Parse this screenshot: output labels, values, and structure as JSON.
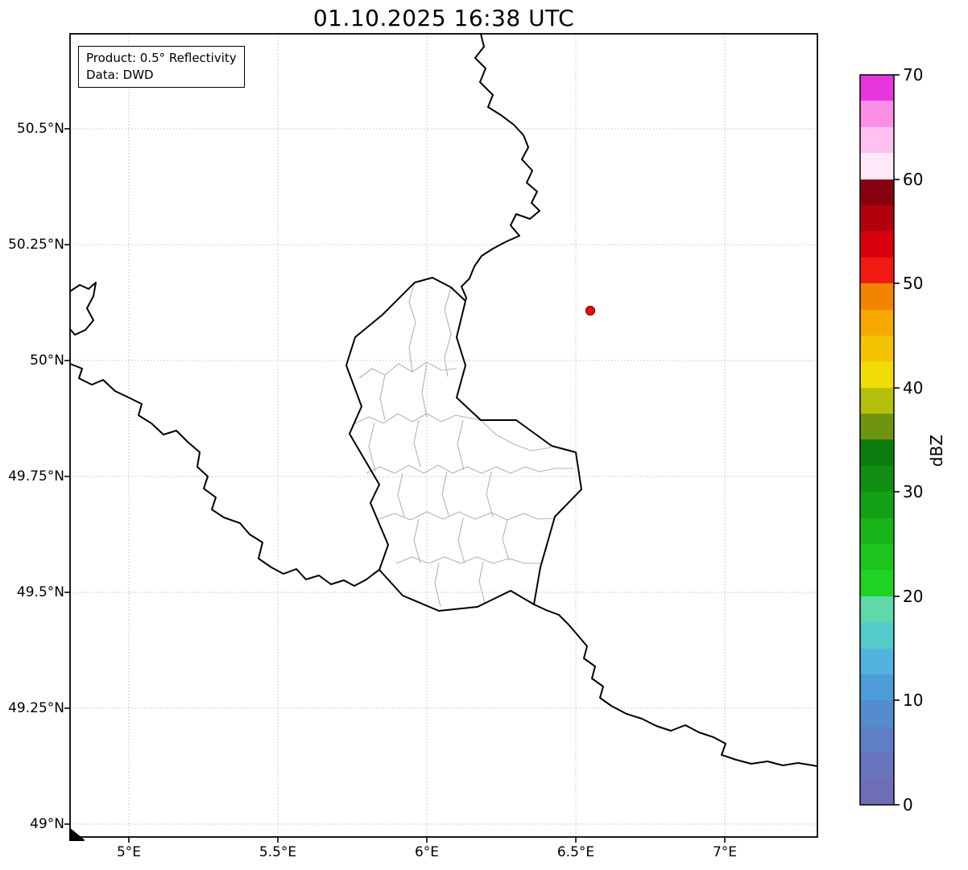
{
  "title": "01.10.2025 16:38 UTC",
  "annotation": {
    "product": "Product: 0.5° Reflectivity",
    "source": "Data: DWD"
  },
  "map": {
    "x_tick_labels": [
      "5°E",
      "5.5°E",
      "6°E",
      "6.5°E",
      "7°E"
    ],
    "y_tick_labels": [
      "50.5°N",
      "50.25°N",
      "50°N",
      "49.75°N",
      "49.5°N",
      "49.25°N",
      "49°N"
    ],
    "marker_color": "#ff0000",
    "border_color": "#000000",
    "district_line_color": "#b3b3b3",
    "grid_color": "#c0c0c0"
  },
  "colorbar": {
    "label": "dBZ",
    "tick_labels": [
      "70",
      "60",
      "50",
      "40",
      "30",
      "20",
      "10",
      "0"
    ],
    "min": 0,
    "max": 70,
    "colors_bottom_to_top": [
      "#6e6eb4",
      "#6675bc",
      "#5e7fc6",
      "#548cce",
      "#4b9cd8",
      "#52b4de",
      "#55cccc",
      "#60d8a8",
      "#1ed321",
      "#1bc51e",
      "#18b41a",
      "#14a116",
      "#108e12",
      "#0c7c0e",
      "#6f9410",
      "#b5c00c",
      "#f0dc06",
      "#f4c403",
      "#f6a800",
      "#f28500",
      "#f01a10",
      "#d8000d",
      "#b2000d",
      "#880110",
      "#ffe8f8",
      "#ffc2f0",
      "#fb8fe8",
      "#e935dc"
    ]
  }
}
